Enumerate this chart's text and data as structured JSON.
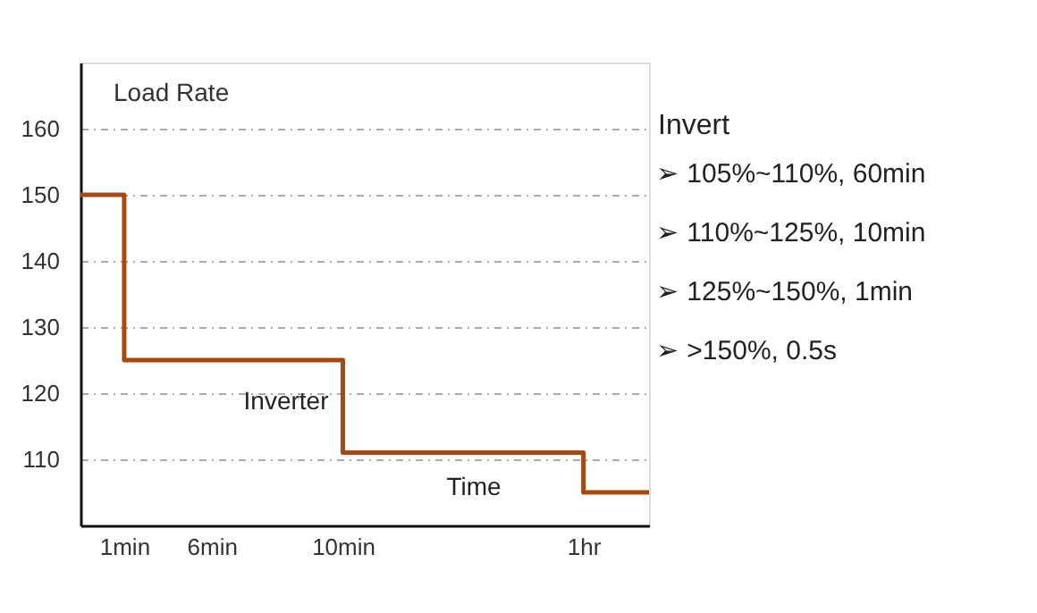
{
  "chart_data": {
    "type": "step",
    "ylabel": "Load Rate",
    "categories": [
      null,
      null,
      "1min",
      null,
      null,
      null,
      "6min",
      null,
      null,
      null,
      null,
      null,
      "10min",
      null,
      null,
      null,
      null,
      null,
      null,
      null,
      null,
      null,
      null,
      "1hr",
      null,
      null,
      null
    ],
    "series": [
      {
        "color": "#a54a12",
        "values": [
          150,
          150,
          125,
          125,
          125,
          125,
          125,
          125,
          125,
          125,
          125,
          125,
          111,
          111,
          111,
          111,
          111,
          111,
          111,
          111,
          111,
          111,
          111,
          105,
          105,
          105,
          105
        ]
      }
    ],
    "ylim": [
      100,
      170
    ],
    "yticks": [
      110,
      120,
      130,
      140,
      150,
      160
    ],
    "grid": "y",
    "marker": "none",
    "line_style": "solid",
    "annotations": [
      "Inverter",
      "Time",
      "Invert",
      "➢ 105%~110%, 60min",
      "➢ 110%~125%, 10min",
      "➢ 125%~150%, 1min",
      "➢ >150%, 0.5s"
    ]
  }
}
